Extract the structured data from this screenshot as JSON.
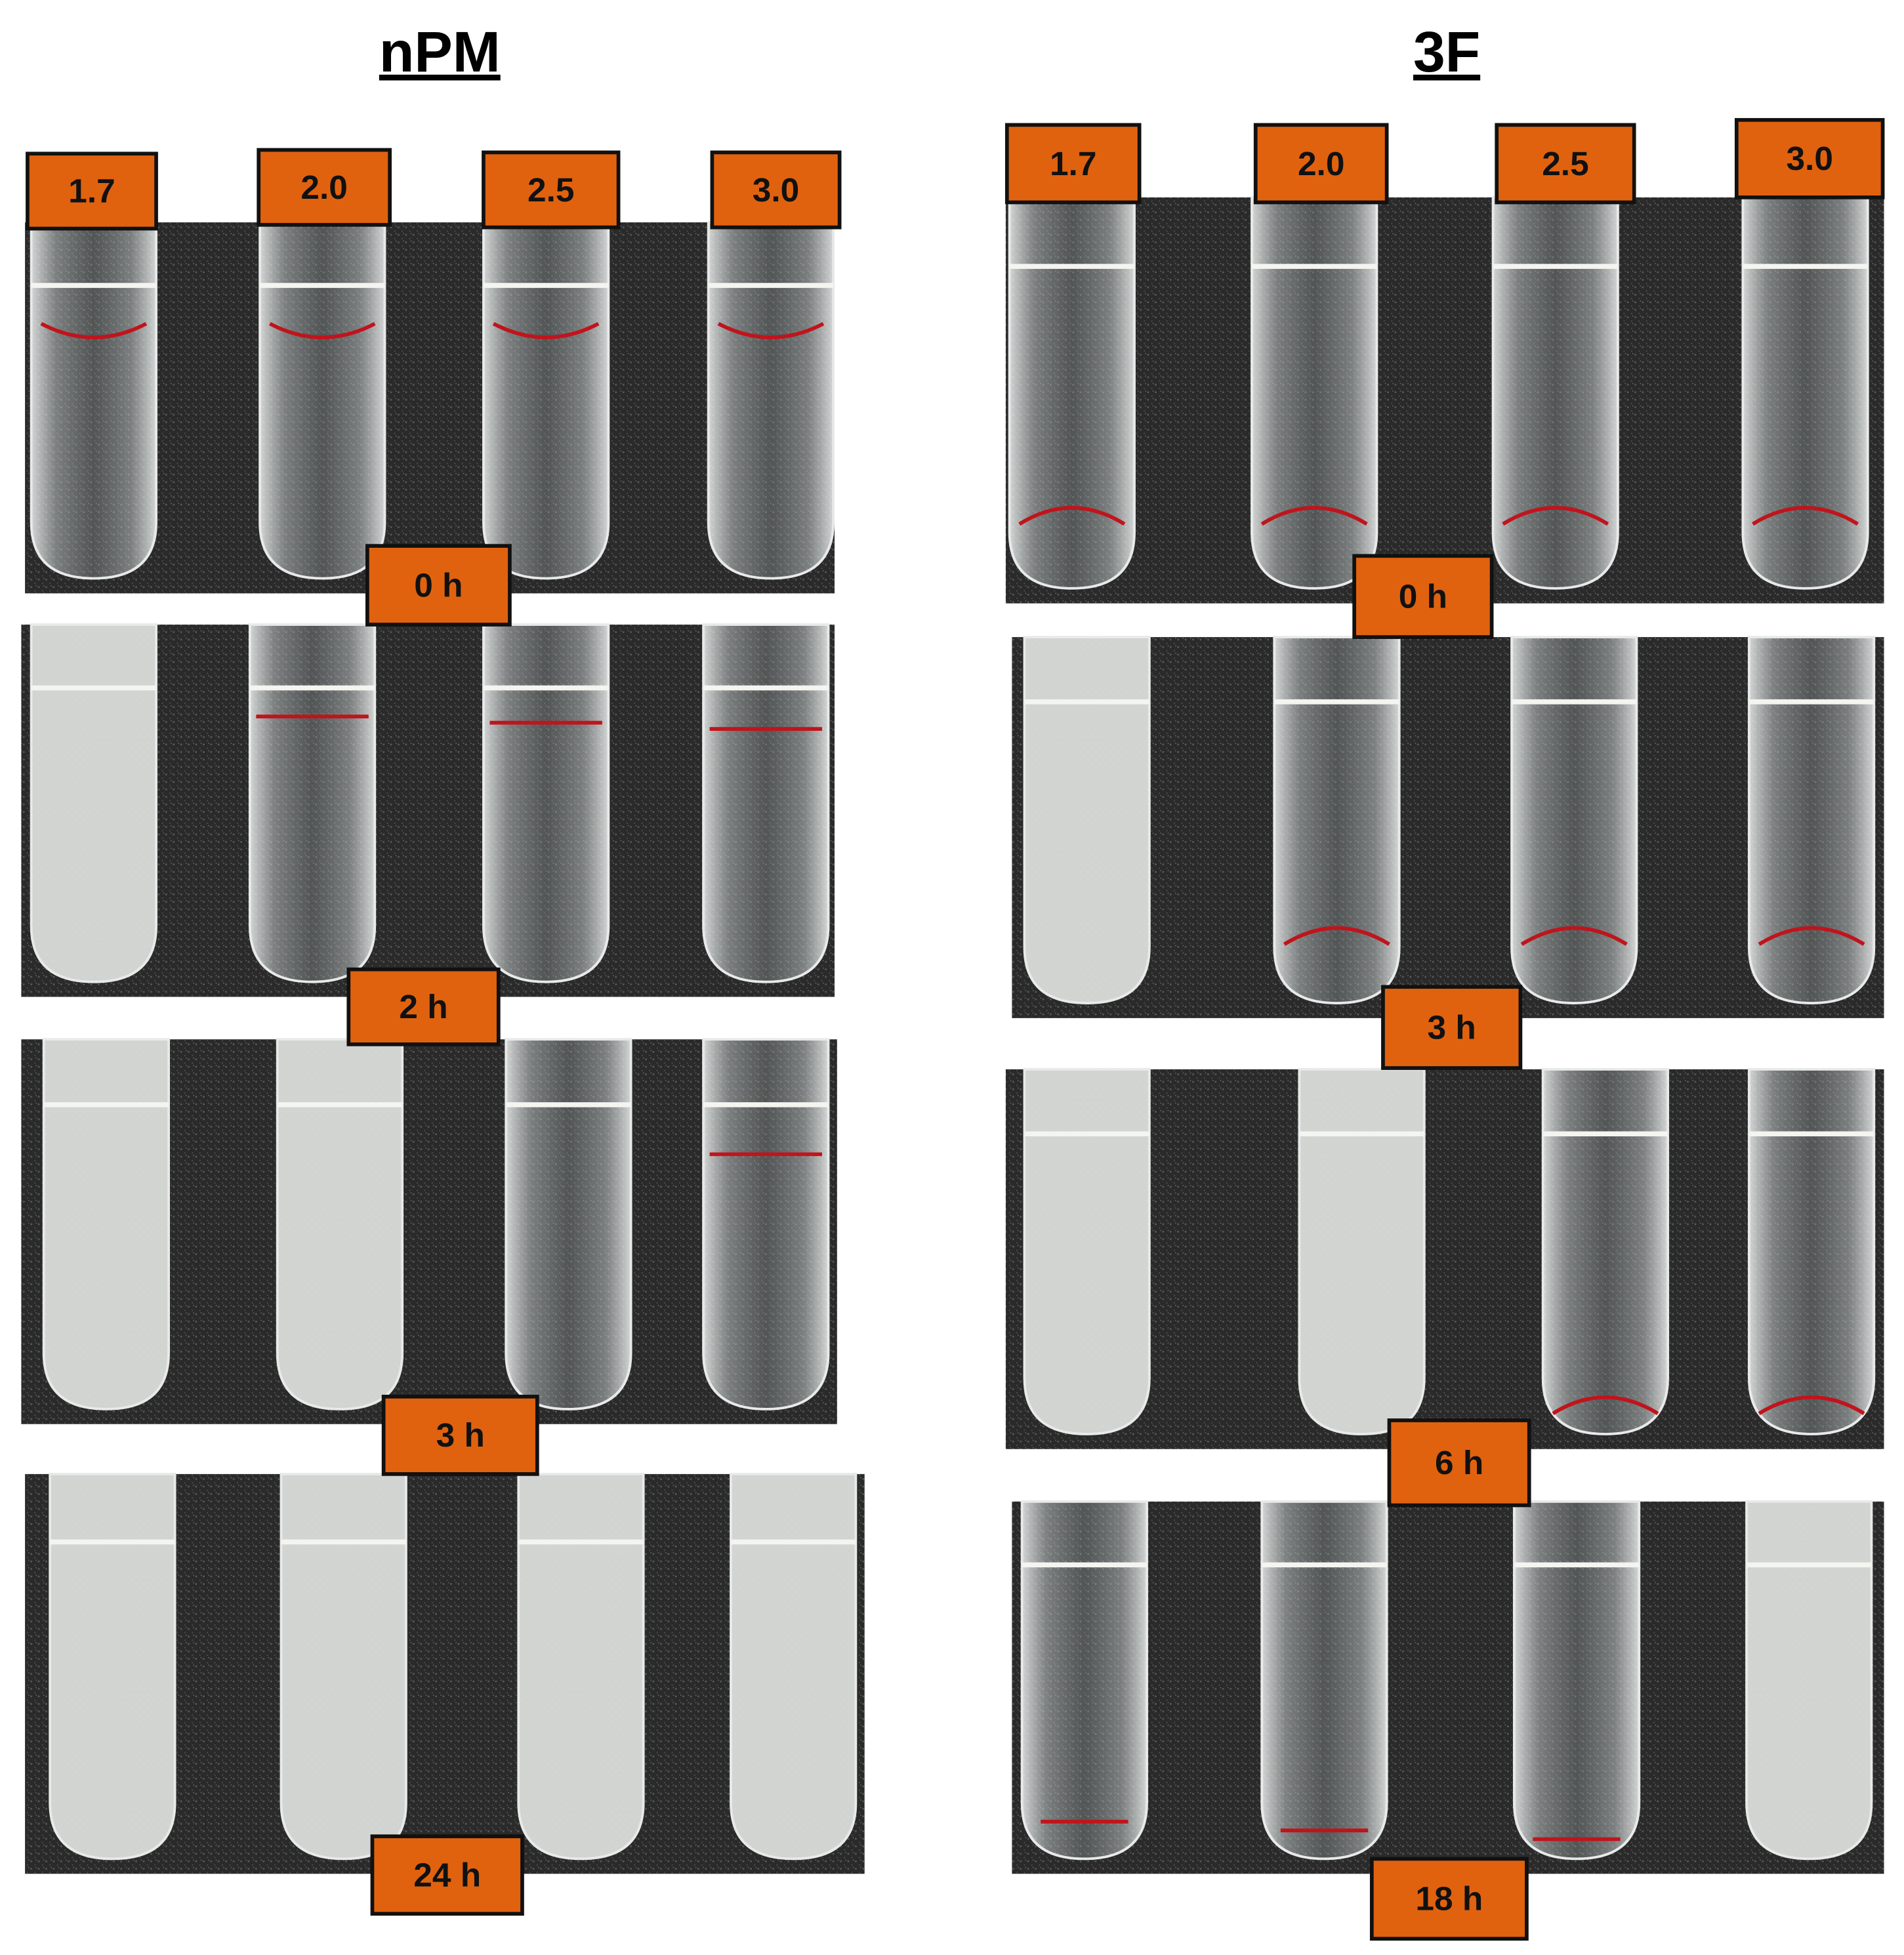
{
  "panels": [
    {
      "title": "nPM",
      "concentrations": [
        "1.7",
        "2.0",
        "2.5",
        "3.0"
      ],
      "times": [
        "0 h",
        "2 h",
        "3 h",
        "24 h"
      ]
    },
    {
      "title": "3F",
      "concentrations": [
        "1.7",
        "2.0",
        "2.5",
        "3.0"
      ],
      "times": [
        "0 h",
        "3 h",
        "6 h",
        "18 h"
      ]
    }
  ]
}
